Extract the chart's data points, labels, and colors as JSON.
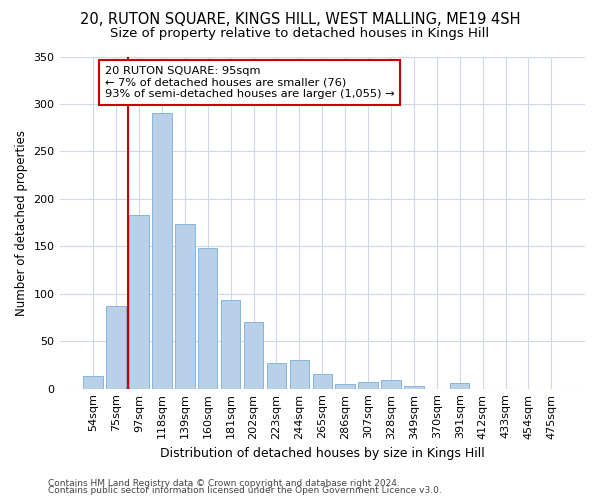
{
  "title1": "20, RUTON SQUARE, KINGS HILL, WEST MALLING, ME19 4SH",
  "title2": "Size of property relative to detached houses in Kings Hill",
  "xlabel": "Distribution of detached houses by size in Kings Hill",
  "ylabel": "Number of detached properties",
  "categories": [
    "54sqm",
    "75sqm",
    "97sqm",
    "118sqm",
    "139sqm",
    "160sqm",
    "181sqm",
    "202sqm",
    "223sqm",
    "244sqm",
    "265sqm",
    "286sqm",
    "307sqm",
    "328sqm",
    "349sqm",
    "370sqm",
    "391sqm",
    "412sqm",
    "433sqm",
    "454sqm",
    "475sqm"
  ],
  "values": [
    13,
    87,
    183,
    290,
    174,
    148,
    93,
    70,
    27,
    30,
    15,
    5,
    7,
    9,
    3,
    0,
    6,
    0,
    0,
    0,
    0
  ],
  "bar_color": "#b8d0e8",
  "bar_edge_color": "#7aaed6",
  "vline_color": "#cc0000",
  "vline_x_index": 2,
  "annotation_text": "20 RUTON SQUARE: 95sqm\n← 7% of detached houses are smaller (76)\n93% of semi-detached houses are larger (1,055) →",
  "annotation_box_color": "#ffffff",
  "annotation_box_edge": "#cc0000",
  "background_color": "#ffffff",
  "plot_bg_color": "#ffffff",
  "grid_color": "#d0d8e8",
  "footer1": "Contains HM Land Registry data © Crown copyright and database right 2024.",
  "footer2": "Contains public sector information licensed under the Open Government Licence v3.0.",
  "ylim": [
    0,
    350
  ],
  "yticks": [
    0,
    50,
    100,
    150,
    200,
    250,
    300,
    350
  ],
  "title1_fontsize": 10.5,
  "title2_fontsize": 9.5,
  "xlabel_fontsize": 9,
  "ylabel_fontsize": 8.5,
  "tick_fontsize": 8,
  "footer_fontsize": 6.5
}
